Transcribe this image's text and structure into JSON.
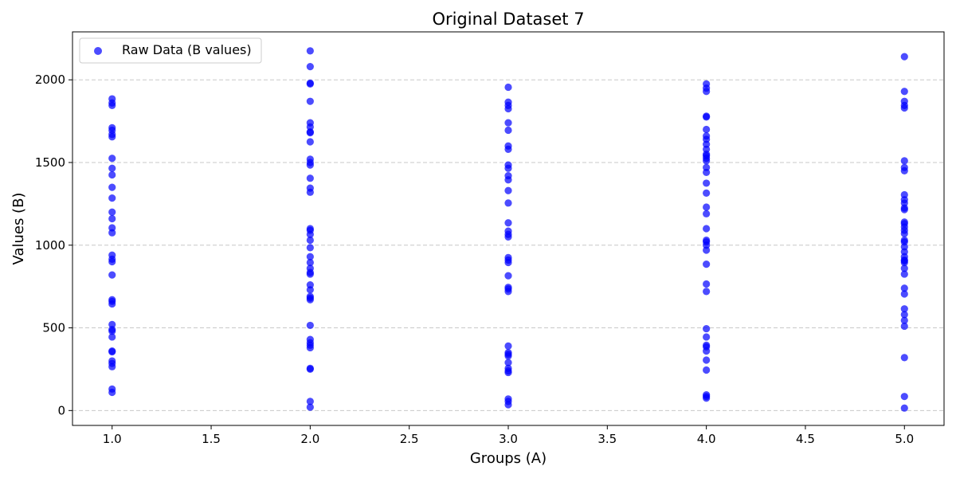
{
  "chart_data": {
    "type": "scatter",
    "title": "Original Dataset 7",
    "xlabel": "Groups (A)",
    "ylabel": "Values (B)",
    "xlim": [
      0.8,
      5.2
    ],
    "ylim": [
      -90,
      2290
    ],
    "xticks": [
      1.0,
      1.5,
      2.0,
      2.5,
      3.0,
      3.5,
      4.0,
      4.5,
      5.0
    ],
    "xtick_labels": [
      "1.0",
      "1.5",
      "2.0",
      "2.5",
      "3.0",
      "3.5",
      "4.0",
      "4.5",
      "5.0"
    ],
    "yticks": [
      0,
      500,
      1000,
      1500,
      2000
    ],
    "ytick_labels": [
      "0",
      "500",
      "1000",
      "1500",
      "2000"
    ],
    "grid": "y-dashed",
    "legend": "upper-left",
    "series": [
      {
        "name": "Raw Data (B values)",
        "color": "#0000ff",
        "alpha": 0.7,
        "points": [
          [
            1,
            1885
          ],
          [
            1,
            1860
          ],
          [
            1,
            1845
          ],
          [
            1,
            1710
          ],
          [
            1,
            1695
          ],
          [
            1,
            1670
          ],
          [
            1,
            1655
          ],
          [
            1,
            1525
          ],
          [
            1,
            1465
          ],
          [
            1,
            1425
          ],
          [
            1,
            1350
          ],
          [
            1,
            1285
          ],
          [
            1,
            1200
          ],
          [
            1,
            1160
          ],
          [
            1,
            1105
          ],
          [
            1,
            1075
          ],
          [
            1,
            940
          ],
          [
            1,
            915
          ],
          [
            1,
            900
          ],
          [
            1,
            820
          ],
          [
            1,
            670
          ],
          [
            1,
            660
          ],
          [
            1,
            645
          ],
          [
            1,
            520
          ],
          [
            1,
            490
          ],
          [
            1,
            480
          ],
          [
            1,
            445
          ],
          [
            1,
            360
          ],
          [
            1,
            355
          ],
          [
            1,
            300
          ],
          [
            1,
            285
          ],
          [
            1,
            265
          ],
          [
            1,
            130
          ],
          [
            1,
            110
          ],
          [
            2,
            2175
          ],
          [
            2,
            2080
          ],
          [
            2,
            1980
          ],
          [
            2,
            1975
          ],
          [
            2,
            1870
          ],
          [
            2,
            1740
          ],
          [
            2,
            1715
          ],
          [
            2,
            1685
          ],
          [
            2,
            1680
          ],
          [
            2,
            1625
          ],
          [
            2,
            1520
          ],
          [
            2,
            1500
          ],
          [
            2,
            1485
          ],
          [
            2,
            1405
          ],
          [
            2,
            1345
          ],
          [
            2,
            1320
          ],
          [
            2,
            1100
          ],
          [
            2,
            1090
          ],
          [
            2,
            1065
          ],
          [
            2,
            1030
          ],
          [
            2,
            985
          ],
          [
            2,
            930
          ],
          [
            2,
            895
          ],
          [
            2,
            860
          ],
          [
            2,
            835
          ],
          [
            2,
            825
          ],
          [
            2,
            760
          ],
          [
            2,
            730
          ],
          [
            2,
            690
          ],
          [
            2,
            680
          ],
          [
            2,
            670
          ],
          [
            2,
            515
          ],
          [
            2,
            430
          ],
          [
            2,
            410
          ],
          [
            2,
            395
          ],
          [
            2,
            380
          ],
          [
            2,
            255
          ],
          [
            2,
            250
          ],
          [
            2,
            55
          ],
          [
            2,
            20
          ],
          [
            3,
            1955
          ],
          [
            3,
            1865
          ],
          [
            3,
            1845
          ],
          [
            3,
            1825
          ],
          [
            3,
            1740
          ],
          [
            3,
            1695
          ],
          [
            3,
            1600
          ],
          [
            3,
            1580
          ],
          [
            3,
            1485
          ],
          [
            3,
            1465
          ],
          [
            3,
            1420
          ],
          [
            3,
            1395
          ],
          [
            3,
            1330
          ],
          [
            3,
            1255
          ],
          [
            3,
            1135
          ],
          [
            3,
            1085
          ],
          [
            3,
            1065
          ],
          [
            3,
            1050
          ],
          [
            3,
            925
          ],
          [
            3,
            910
          ],
          [
            3,
            895
          ],
          [
            3,
            815
          ],
          [
            3,
            745
          ],
          [
            3,
            735
          ],
          [
            3,
            720
          ],
          [
            3,
            390
          ],
          [
            3,
            350
          ],
          [
            3,
            340
          ],
          [
            3,
            330
          ],
          [
            3,
            290
          ],
          [
            3,
            255
          ],
          [
            3,
            240
          ],
          [
            3,
            230
          ],
          [
            3,
            70
          ],
          [
            3,
            55
          ],
          [
            3,
            35
          ],
          [
            4,
            1975
          ],
          [
            4,
            1950
          ],
          [
            4,
            1930
          ],
          [
            4,
            1780
          ],
          [
            4,
            1775
          ],
          [
            4,
            1700
          ],
          [
            4,
            1660
          ],
          [
            4,
            1640
          ],
          [
            4,
            1610
          ],
          [
            4,
            1580
          ],
          [
            4,
            1550
          ],
          [
            4,
            1540
          ],
          [
            4,
            1525
          ],
          [
            4,
            1510
          ],
          [
            4,
            1470
          ],
          [
            4,
            1440
          ],
          [
            4,
            1375
          ],
          [
            4,
            1315
          ],
          [
            4,
            1230
          ],
          [
            4,
            1190
          ],
          [
            4,
            1100
          ],
          [
            4,
            1030
          ],
          [
            4,
            1020
          ],
          [
            4,
            1000
          ],
          [
            4,
            970
          ],
          [
            4,
            885
          ],
          [
            4,
            765
          ],
          [
            4,
            720
          ],
          [
            4,
            495
          ],
          [
            4,
            445
          ],
          [
            4,
            395
          ],
          [
            4,
            385
          ],
          [
            4,
            360
          ],
          [
            4,
            305
          ],
          [
            4,
            245
          ],
          [
            4,
            95
          ],
          [
            4,
            85
          ],
          [
            4,
            75
          ],
          [
            5,
            2140
          ],
          [
            5,
            1930
          ],
          [
            5,
            1870
          ],
          [
            5,
            1845
          ],
          [
            5,
            1830
          ],
          [
            5,
            1510
          ],
          [
            5,
            1470
          ],
          [
            5,
            1450
          ],
          [
            5,
            1305
          ],
          [
            5,
            1275
          ],
          [
            5,
            1255
          ],
          [
            5,
            1225
          ],
          [
            5,
            1215
          ],
          [
            5,
            1140
          ],
          [
            5,
            1130
          ],
          [
            5,
            1110
          ],
          [
            5,
            1090
          ],
          [
            5,
            1070
          ],
          [
            5,
            1030
          ],
          [
            5,
            1020
          ],
          [
            5,
            990
          ],
          [
            5,
            960
          ],
          [
            5,
            930
          ],
          [
            5,
            910
          ],
          [
            5,
            905
          ],
          [
            5,
            895
          ],
          [
            5,
            860
          ],
          [
            5,
            825
          ],
          [
            5,
            740
          ],
          [
            5,
            705
          ],
          [
            5,
            615
          ],
          [
            5,
            580
          ],
          [
            5,
            545
          ],
          [
            5,
            510
          ],
          [
            5,
            320
          ],
          [
            5,
            85
          ],
          [
            5,
            15
          ]
        ]
      }
    ]
  }
}
